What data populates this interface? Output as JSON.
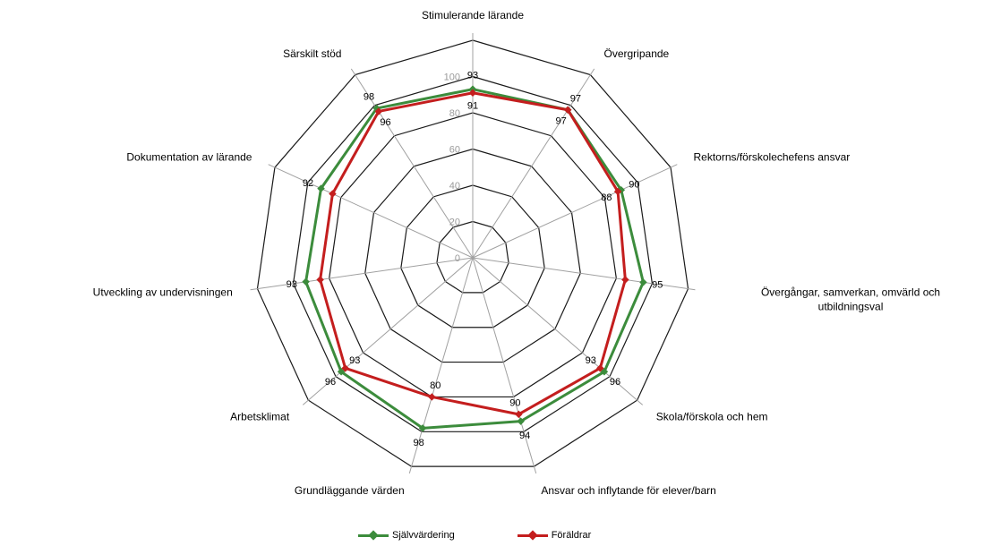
{
  "chart_data": {
    "type": "radar",
    "categories": [
      "Stimulerande lärande",
      "Övergripande",
      "Rektorns/förskolechefens ansvar",
      "Övergångar, samverkan, omvärld och utbildningsval",
      "Skola/förskola och hem",
      "Ansvar och inflytande för elever/barn",
      "Grundläggande värden",
      "Arbetsklimat",
      "Utveckling av undervisningen",
      "Dokumentation av lärande",
      "Särskilt stöd"
    ],
    "series": [
      {
        "name": "Självvärdering",
        "color": "#3c8c3c",
        "values": [
          93,
          97,
          90,
          95,
          96,
          94,
          98,
          96,
          93,
          92,
          98
        ],
        "labels": [
          "93",
          "97",
          "90",
          "95",
          "96",
          "94",
          "98",
          "96",
          "93",
          "92",
          "98"
        ]
      },
      {
        "name": "Föräldrar",
        "color": "#c41e1e",
        "values": [
          91,
          97,
          88,
          85,
          93,
          90,
          80,
          93,
          85,
          85,
          96
        ],
        "labels": [
          "91",
          "97",
          "88",
          "",
          "93",
          "90",
          "80",
          "93",
          "",
          "",
          "96"
        ]
      }
    ],
    "radial_ticks": [
      "0",
      "20",
      "40",
      "60",
      "80",
      "100"
    ],
    "rmin": 0,
    "rmax": 120,
    "grid": true,
    "legend_position": "bottom"
  }
}
